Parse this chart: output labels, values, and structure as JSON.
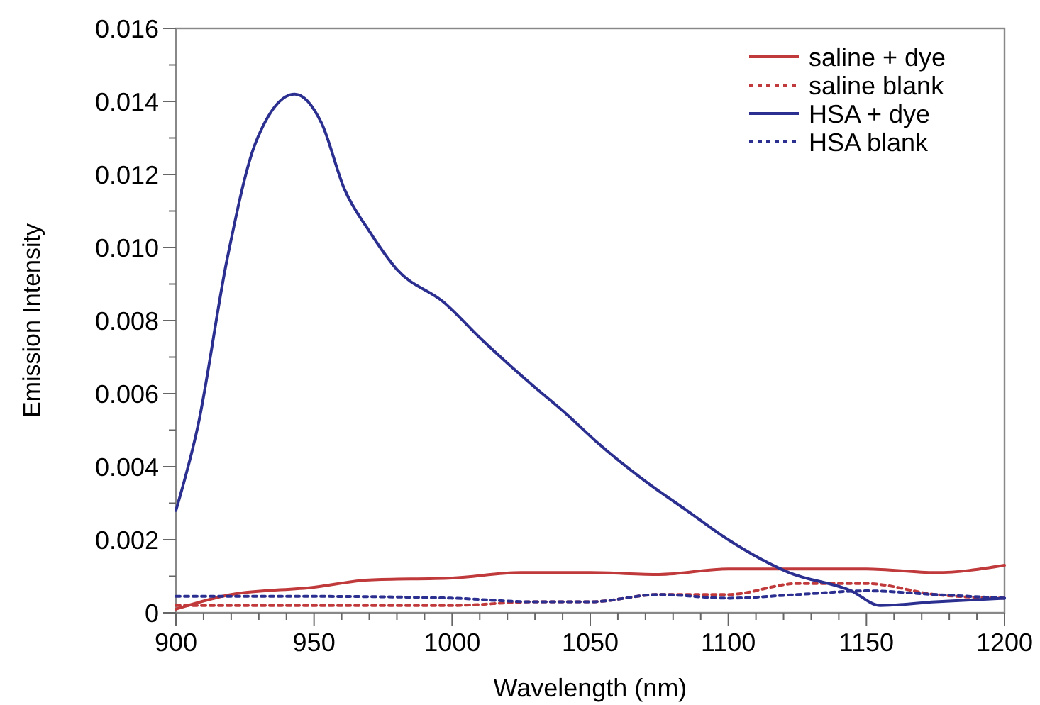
{
  "chart_data": {
    "type": "line",
    "xlabel": "Wavelength (nm)",
    "ylabel": "Emission Intensity",
    "xlim": [
      900,
      1200
    ],
    "ylim": [
      0,
      0.016
    ],
    "xticks": [
      900,
      {
        "value": 910,
        "label": null
      },
      {
        "value": 920,
        "label": null
      },
      {
        "value": 930,
        "label": null
      },
      {
        "value": 940,
        "label": null
      },
      950,
      {
        "value": 960,
        "label": null
      },
      {
        "value": 970,
        "label": null
      },
      {
        "value": 980,
        "label": null
      },
      {
        "value": 990,
        "label": null
      },
      1000,
      {
        "value": 1010,
        "label": null
      },
      {
        "value": 1020,
        "label": null
      },
      {
        "value": 1030,
        "label": null
      },
      {
        "value": 1040,
        "label": null
      },
      1050,
      {
        "value": 1060,
        "label": null
      },
      {
        "value": 1070,
        "label": null
      },
      {
        "value": 1080,
        "label": null
      },
      {
        "value": 1090,
        "label": null
      },
      1100,
      {
        "value": 1110,
        "label": null
      },
      {
        "value": 1120,
        "label": null
      },
      {
        "value": 1130,
        "label": null
      },
      {
        "value": 1140,
        "label": null
      },
      1150,
      {
        "value": 1160,
        "label": null
      },
      {
        "value": 1170,
        "label": null
      },
      {
        "value": 1180,
        "label": null
      },
      {
        "value": 1190,
        "label": null
      },
      1200
    ],
    "yticks": [
      {
        "value": 0,
        "label": "0"
      },
      {
        "value": 0.001,
        "label": null
      },
      {
        "value": 0.002,
        "label": "0.002"
      },
      {
        "value": 0.003,
        "label": null
      },
      {
        "value": 0.004,
        "label": "0.004"
      },
      {
        "value": 0.005,
        "label": null
      },
      {
        "value": 0.006,
        "label": "0.006"
      },
      {
        "value": 0.007,
        "label": null
      },
      {
        "value": 0.008,
        "label": "0.008"
      },
      {
        "value": 0.009,
        "label": null
      },
      {
        "value": 0.01,
        "label": "0.010"
      },
      {
        "value": 0.011,
        "label": null
      },
      {
        "value": 0.012,
        "label": "0.012"
      },
      {
        "value": 0.013,
        "label": null
      },
      {
        "value": 0.014,
        "label": "0.014"
      },
      {
        "value": 0.015,
        "label": null
      },
      {
        "value": 0.016,
        "label": "0.016"
      }
    ],
    "legend": "top right",
    "grid": false,
    "marker": "none",
    "series": [
      {
        "name": "saline + dye",
        "color": "#c0393b",
        "line_style": "solid",
        "x": [
          900,
          920,
          950,
          970,
          1000,
          1025,
          1050,
          1075,
          1100,
          1150,
          1175,
          1200
        ],
        "values": [
          0.0001,
          0.0005,
          0.0007,
          0.0009,
          0.00095,
          0.0011,
          0.0011,
          0.00105,
          0.0012,
          0.0012,
          0.0011,
          0.0013
        ]
      },
      {
        "name": "saline blank",
        "color": "#c0393b",
        "line_style": "dotted",
        "x": [
          900,
          1000,
          1030,
          1050,
          1075,
          1100,
          1125,
          1150,
          1175,
          1200
        ],
        "values": [
          0.0002,
          0.0002,
          0.0003,
          0.0003,
          0.0005,
          0.0005,
          0.0008,
          0.0008,
          0.0005,
          0.0004
        ]
      },
      {
        "name": "HSA + dye",
        "color": "#2b2f8f",
        "line_style": "solid",
        "x": [
          900,
          908,
          918.5,
          929,
          943,
          952.7,
          961,
          970,
          980,
          997,
          1011,
          1028,
          1042,
          1052,
          1070,
          1085,
          1100,
          1122,
          1144.5,
          1155,
          1175,
          1200
        ],
        "values": [
          0.0028,
          0.00513,
          0.00967,
          0.0129,
          0.0142,
          0.01341,
          0.0116,
          0.01045,
          0.0094,
          0.0085,
          0.00746,
          0.0063,
          0.0054,
          0.0047,
          0.0036,
          0.0028,
          0.002,
          0.0011,
          0.0006,
          0.0002,
          0.0003,
          0.0004
        ]
      },
      {
        "name": "HSA blank",
        "color": "#2b2f8f",
        "line_style": "dotted",
        "x": [
          900,
          950,
          1000,
          1030,
          1050,
          1075,
          1100,
          1125,
          1150,
          1175,
          1200
        ],
        "values": [
          0.00045,
          0.00045,
          0.0004,
          0.0003,
          0.0003,
          0.0005,
          0.0004,
          0.0005,
          0.0006,
          0.0005,
          0.0004
        ]
      }
    ]
  }
}
